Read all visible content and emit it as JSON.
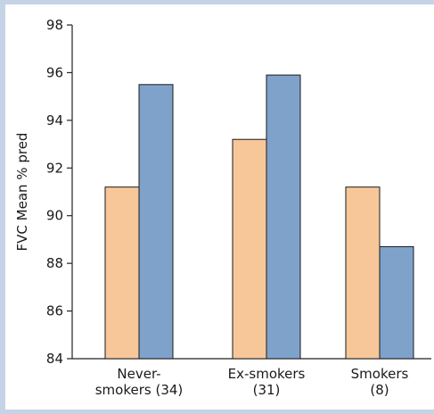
{
  "chart_data": {
    "type": "bar",
    "title": "",
    "xlabel": "",
    "ylabel": "FVC Mean % pred",
    "ylim": [
      84,
      98
    ],
    "yticks": [
      84,
      86,
      88,
      90,
      92,
      94,
      96,
      98
    ],
    "categories": [
      [
        "Never-",
        "smokers (34)"
      ],
      [
        "Ex-smokers",
        "(31)"
      ],
      [
        "Smokers",
        "(8)"
      ]
    ],
    "series": [
      {
        "color": "#f7c79a",
        "values": [
          91.2,
          93.2,
          91.2
        ]
      },
      {
        "color": "#7fa2cb",
        "values": [
          95.5,
          95.9,
          88.7
        ]
      }
    ],
    "grid": false,
    "legend": "none"
  }
}
